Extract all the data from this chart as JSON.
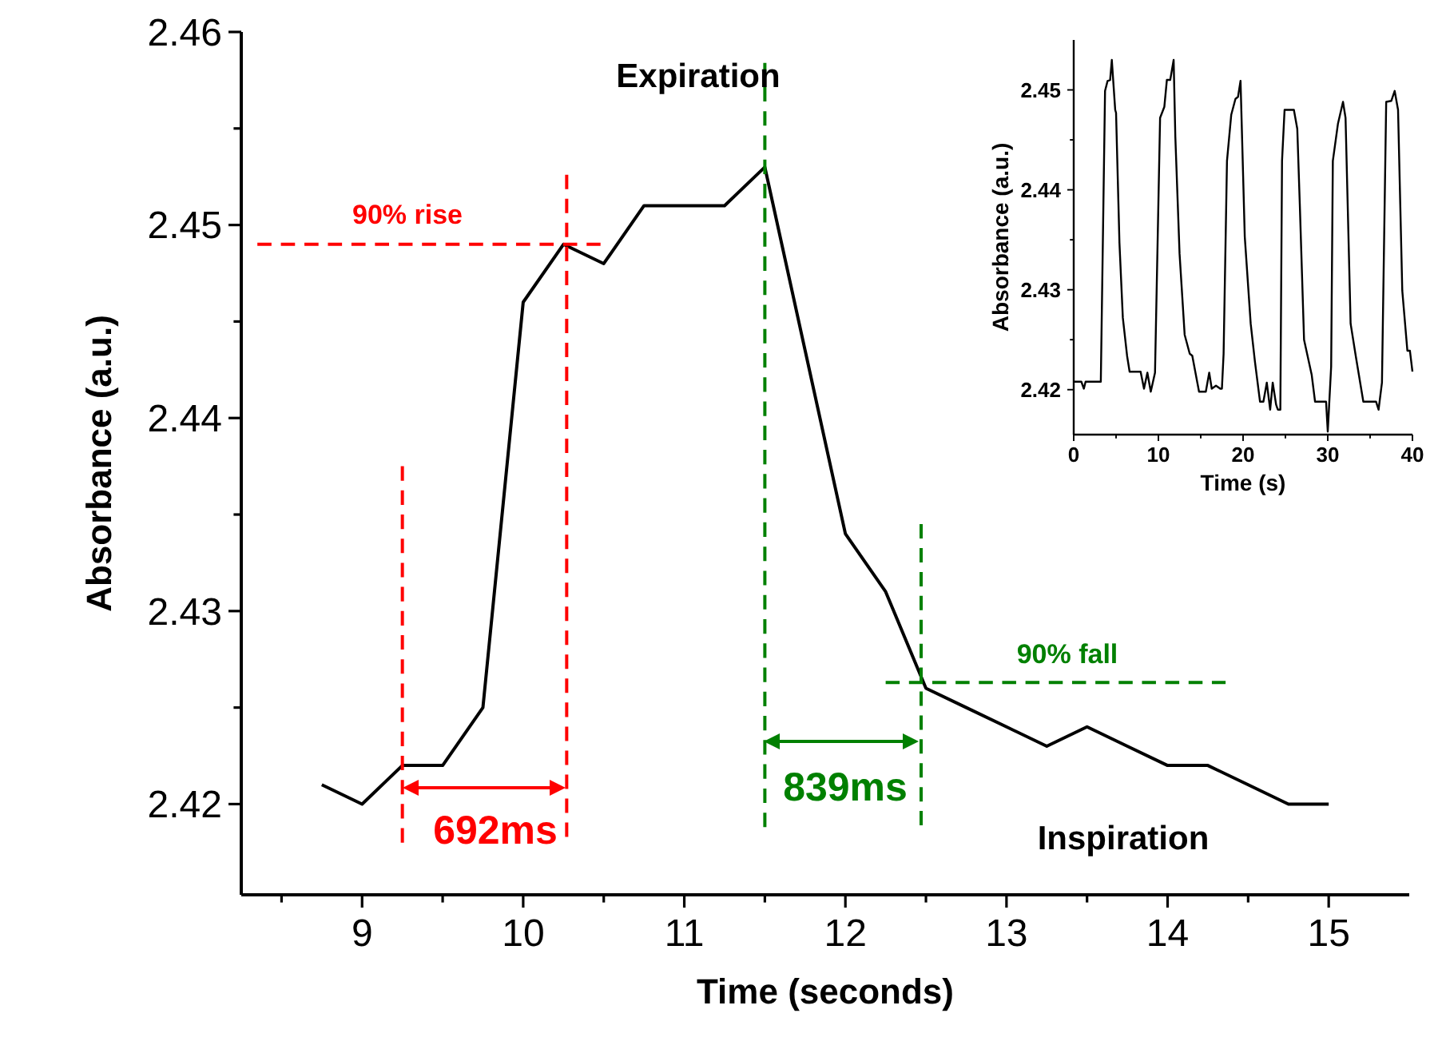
{
  "chart_data": [
    {
      "type": "line",
      "xlabel": "Time (seconds)",
      "ylabel": "Absorbance (a.u.)",
      "xlim": [
        8.25,
        15.5
      ],
      "xticks": [
        {
          "value": 8.5,
          "label": null
        },
        9,
        {
          "value": 9.5,
          "label": null
        },
        10,
        {
          "value": 10.5,
          "label": null
        },
        11,
        {
          "value": 11.5,
          "label": null
        },
        12,
        {
          "value": 12.5,
          "label": null
        },
        13,
        {
          "value": 13.5,
          "label": null
        },
        14,
        {
          "value": 14.5,
          "label": null
        },
        15
      ],
      "ylim": [
        2.4153,
        2.46
      ],
      "yticks": [
        2.42,
        {
          "value": 2.425,
          "label": null
        },
        2.43,
        {
          "value": 2.435,
          "label": null
        },
        2.44,
        {
          "value": 2.445,
          "label": null
        },
        2.45,
        {
          "value": 2.455,
          "label": null
        },
        2.46
      ],
      "series": [
        {
          "color": "#000000",
          "x": [
            8.75,
            9,
            9.25,
            9.5,
            9.75,
            10,
            10.25,
            10.5,
            10.75,
            11,
            11.25,
            11.5,
            11.75,
            12,
            12.25,
            12.5,
            12.75,
            13,
            13.25,
            13.5,
            13.75,
            14,
            14.25,
            14.5,
            14.75,
            15
          ],
          "values": [
            2.421,
            2.42,
            2.422,
            2.422,
            2.425,
            2.446,
            2.449,
            2.448,
            2.451,
            2.451,
            2.451,
            2.453,
            2.4435,
            2.434,
            2.431,
            2.426,
            2.425,
            2.424,
            2.423,
            2.424,
            2.423,
            2.422,
            2.422,
            2.421,
            2.42,
            2.42
          ]
        },
        {
          "color": "#ff0000",
          "line_style": "dashed",
          "x": [
            9.25,
            9.25
          ],
          "values": [
            2.4375,
            2.418
          ]
        },
        {
          "color": "#ff0000",
          "line_style": "dashed",
          "x": [
            10.27,
            10.27
          ],
          "values": [
            2.4526,
            2.4183
          ]
        },
        {
          "color": "#ff0000",
          "line_style": "dashed",
          "x": [
            8.35,
            10.48
          ],
          "values": [
            2.449,
            2.449
          ]
        },
        {
          "color": "#008000",
          "line_style": "dashed",
          "x": [
            11.5,
            11.5
          ],
          "values": [
            2.4584,
            2.4188
          ]
        },
        {
          "color": "#008000",
          "line_style": "dashed",
          "x": [
            12.47,
            12.47
          ],
          "values": [
            2.4345,
            2.4189
          ]
        },
        {
          "color": "#008000",
          "line_style": "dashed",
          "x": [
            12.25,
            14.36
          ],
          "values": [
            2.4263,
            2.4263
          ]
        }
      ],
      "annotations": [
        "90% rise",
        "692ms",
        "839ms",
        "90% fall",
        "Expiration",
        "Inspiration"
      ]
    },
    {
      "type": "line",
      "xlabel": "Time (s)",
      "ylabel": "Absorbance (a.u.)",
      "xlim": [
        0,
        40
      ],
      "xticks": [
        0,
        {
          "value": 5,
          "label": null
        },
        10,
        {
          "value": 15,
          "label": null
        },
        20,
        {
          "value": 25,
          "label": null
        },
        30,
        {
          "value": 35,
          "label": null
        },
        40
      ],
      "ylim": [
        2.4155,
        2.455
      ],
      "yticks": [
        2.42,
        {
          "value": 2.425,
          "label": null
        },
        2.43,
        {
          "value": 2.435,
          "label": null
        },
        2.44,
        {
          "value": 2.445,
          "label": null
        },
        2.45
      ],
      "series": [
        {
          "color": "#000000",
          "x": [
            0,
            0.9,
            1.2,
            1.4,
            2.3,
            3.2,
            3.7,
            4.0,
            4.3,
            4.5,
            4.9,
            5.0,
            5.4,
            5.8,
            6.3,
            6.6,
            7.9,
            8.3,
            8.7,
            9.1,
            9.6,
            10.2,
            10.7,
            11.0,
            11.4,
            11.8,
            12.0,
            12.5,
            13.1,
            13.7,
            14.0,
            14.8,
            15.6,
            16.0,
            16.3,
            16.8,
            17.3,
            17.5,
            17.7,
            18.1,
            18.6,
            19.1,
            19.4,
            19.7,
            20.2,
            20.9,
            21.4,
            22.0,
            22.4,
            22.8,
            23.2,
            23.5,
            23.9,
            24.1,
            24.4,
            24.6,
            24.9,
            25.4,
            26.0,
            26.4,
            26.7,
            27.2,
            28.1,
            28.5,
            29.8,
            30.0,
            30.4,
            30.6,
            31.2,
            31.8,
            32.1,
            32.7,
            33.3,
            34.2,
            35.7,
            36.0,
            36.4,
            36.9,
            37.5,
            37.9,
            38.3,
            38.8,
            39.4,
            39.7,
            40.0
          ],
          "values": [
            2.4208,
            2.4208,
            2.4201,
            2.4208,
            2.4208,
            2.4208,
            2.4499,
            2.4509,
            2.451,
            2.453,
            2.448,
            2.4477,
            2.4347,
            2.4272,
            2.4234,
            2.4218,
            2.4218,
            2.4201,
            2.4217,
            2.4198,
            2.4217,
            2.4472,
            2.4483,
            2.451,
            2.451,
            2.453,
            2.4453,
            2.4336,
            2.4255,
            2.4236,
            2.4234,
            2.4198,
            2.4198,
            2.4217,
            2.4201,
            2.4204,
            2.4201,
            2.4201,
            2.4236,
            2.4429,
            2.4475,
            2.4491,
            2.4493,
            2.4509,
            2.4353,
            2.4266,
            2.4228,
            2.4188,
            2.4188,
            2.4207,
            2.418,
            2.4207,
            2.4185,
            2.418,
            2.418,
            2.4429,
            2.448,
            2.448,
            2.448,
            2.4461,
            2.4385,
            2.425,
            2.4215,
            2.4188,
            2.4188,
            2.4158,
            2.4223,
            2.4429,
            2.4466,
            2.4488,
            2.4472,
            2.4266,
            2.4234,
            2.4188,
            2.4188,
            2.418,
            2.4207,
            2.4488,
            2.4489,
            2.4499,
            2.448,
            2.4299,
            2.4239,
            2.4239,
            2.4218
          ]
        }
      ]
    }
  ]
}
